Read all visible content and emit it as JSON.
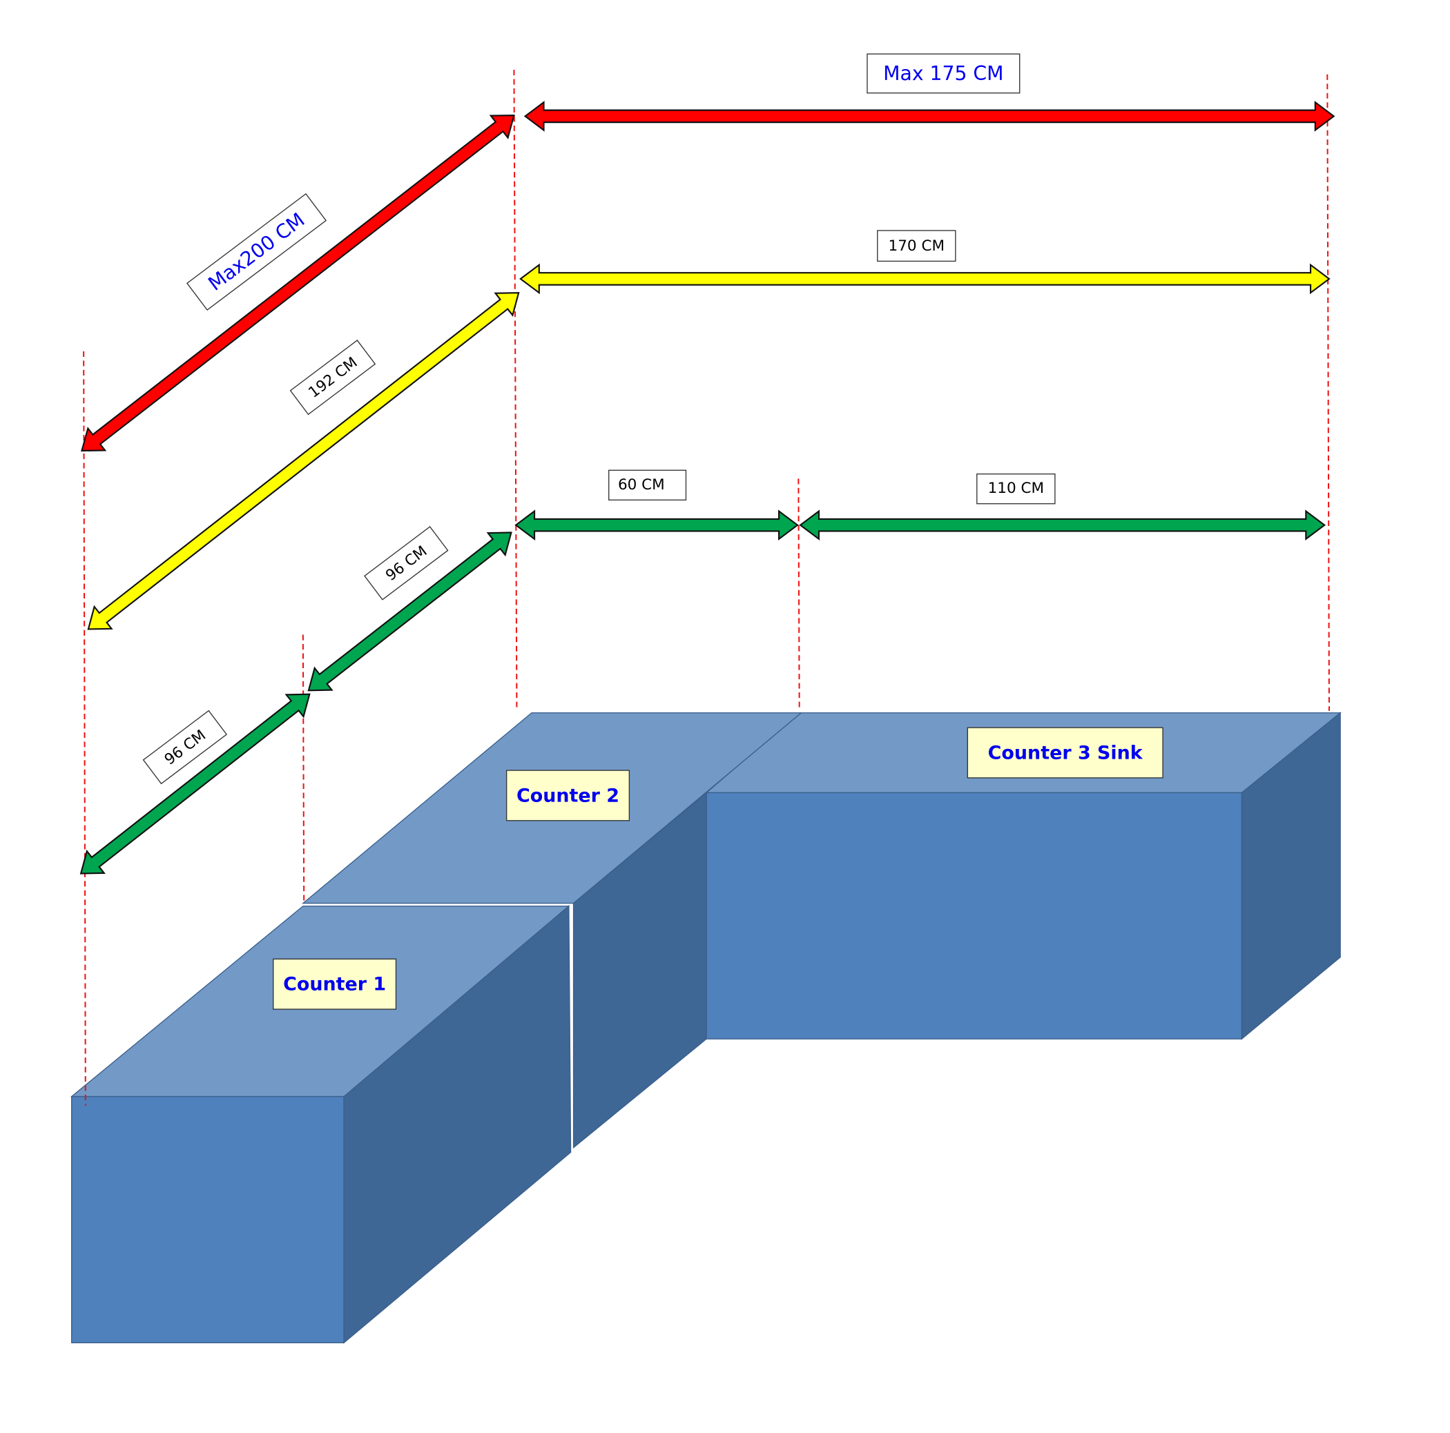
{
  "dimension_labels": [
    "Max 175 CM",
    "Max200 CM",
    "170 CM",
    "192 CM",
    "60 CM",
    "110 CM",
    "96 CM",
    "96 CM"
  ],
  "counters": [
    "Counter 1",
    "Counter 2",
    "Counter 3 Sink"
  ]
}
